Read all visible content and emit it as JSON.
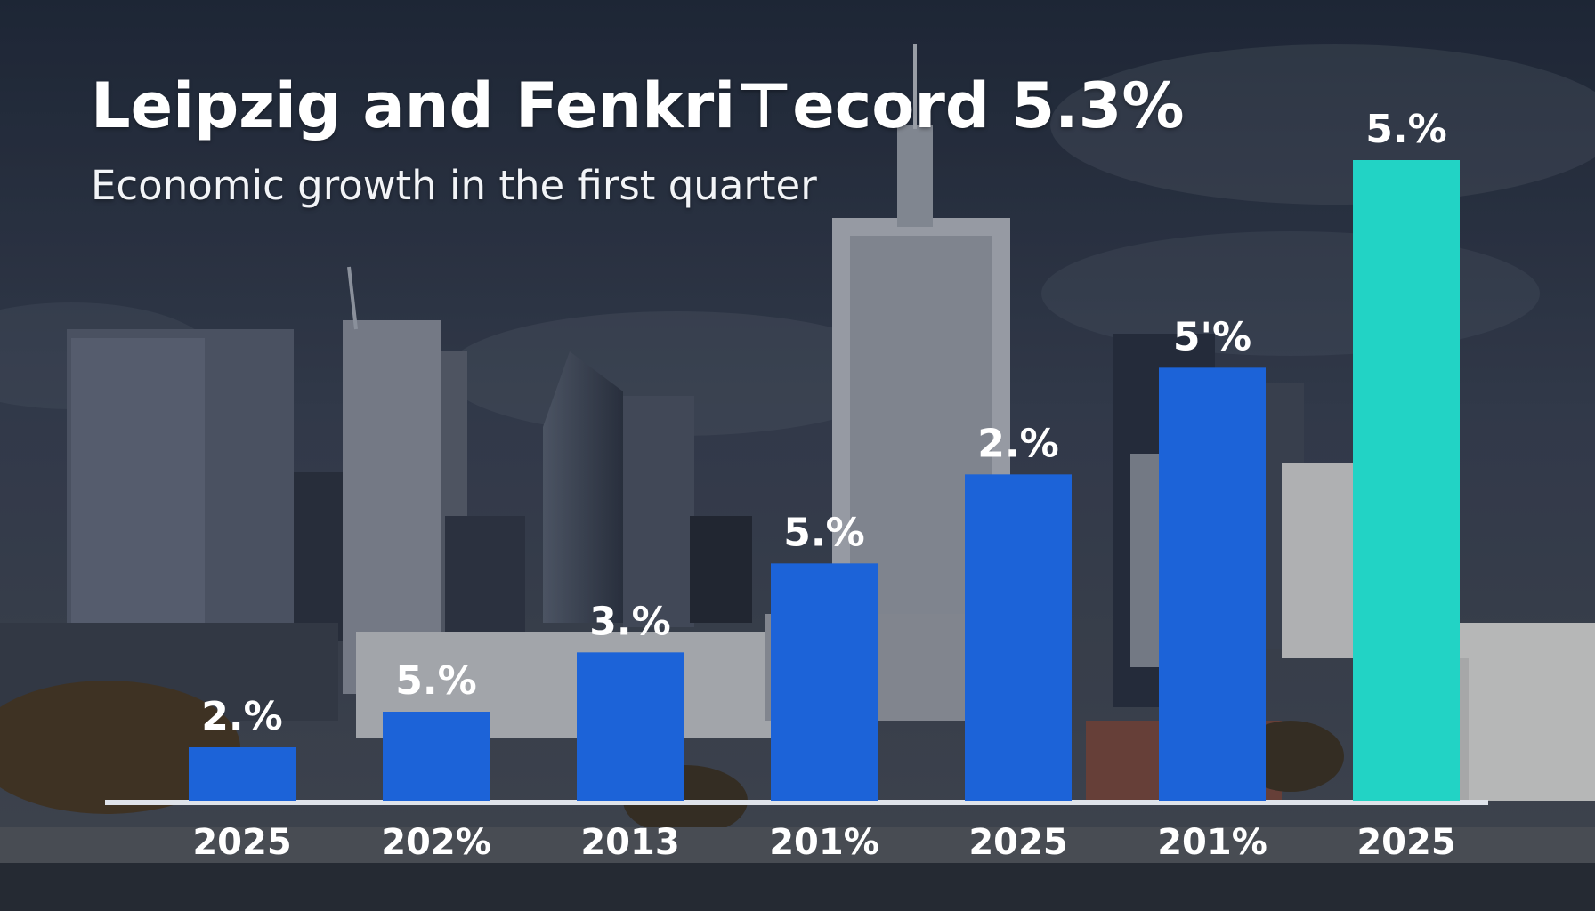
{
  "chart_data": {
    "type": "bar",
    "title": "Leipzig and Fenkri⊤ecord 5.3%",
    "subtitle": "Economic growth in the first quarter",
    "categories": [
      "2025",
      "202%",
      "2013",
      "201%",
      "2025",
      "201%",
      "2025"
    ],
    "values": [
      0.9,
      1.5,
      2.5,
      4.0,
      5.5,
      7.3,
      10.8
    ],
    "value_labels": [
      "2.%",
      "5.%",
      "3.%",
      "5.%",
      "2.%",
      "5'%",
      "5.%"
    ],
    "ylim": [
      0,
      12
    ],
    "grid": false,
    "legend": "none",
    "colors": {
      "bar": "#1c63d8",
      "highlight_bar": "#22d3c5",
      "highlight_label": "#5fe7de",
      "text": "#ffffff",
      "baseline": "#dfe3ea"
    },
    "highlight_index": 6
  }
}
